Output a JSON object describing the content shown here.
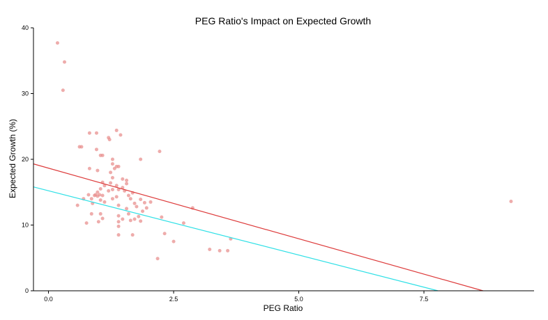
{
  "chart_data": {
    "type": "scatter",
    "title": "PEG Ratio's Impact on Expected Growth",
    "xlabel": "PEG Ratio",
    "ylabel": "Expected Growth (%)",
    "xlim": [
      -0.3,
      9.7
    ],
    "ylim": [
      0,
      40
    ],
    "xticks": [
      0,
      2.5,
      5,
      7.5
    ],
    "xtick_labels": [
      "0.0",
      "2.5",
      "5.0",
      "7.5"
    ],
    "yticks": [
      0,
      10,
      20,
      30,
      40
    ],
    "ytick_labels": [
      "0",
      "10",
      "20",
      "30",
      "40"
    ],
    "grid": false,
    "legend": "none",
    "colors": {
      "points": "#e8908f",
      "line_red": "#dd3b3b",
      "line_cyan": "#2fe0e6"
    },
    "series": [
      {
        "points": [
          [
            0.18,
            37.7
          ],
          [
            0.32,
            34.8
          ],
          [
            0.29,
            30.5
          ],
          [
            0.62,
            21.9
          ],
          [
            0.66,
            21.9
          ],
          [
            0.96,
            24.0
          ],
          [
            0.82,
            24.0
          ],
          [
            1.36,
            24.4
          ],
          [
            1.44,
            23.7
          ],
          [
            1.2,
            23.3
          ],
          [
            1.22,
            23.0
          ],
          [
            2.22,
            21.2
          ],
          [
            0.96,
            21.5
          ],
          [
            1.04,
            20.6
          ],
          [
            1.08,
            20.6
          ],
          [
            1.84,
            20.0
          ],
          [
            1.28,
            20.0
          ],
          [
            1.28,
            19.3
          ],
          [
            1.36,
            18.9
          ],
          [
            1.4,
            18.9
          ],
          [
            1.32,
            18.6
          ],
          [
            0.82,
            18.6
          ],
          [
            0.98,
            18.3
          ],
          [
            1.24,
            18.0
          ],
          [
            1.08,
            16.5
          ],
          [
            1.24,
            16.4
          ],
          [
            1.48,
            17.0
          ],
          [
            1.56,
            16.8
          ],
          [
            1.28,
            17.2
          ],
          [
            1.12,
            16.0
          ],
          [
            1.56,
            16.3
          ],
          [
            1.36,
            16.0
          ],
          [
            1.48,
            15.7
          ],
          [
            1.4,
            15.4
          ],
          [
            1.28,
            15.4
          ],
          [
            1.52,
            15.2
          ],
          [
            1.04,
            15.5
          ],
          [
            0.98,
            15.0
          ],
          [
            1.68,
            14.9
          ],
          [
            1.6,
            14.5
          ],
          [
            1.64,
            14.0
          ],
          [
            1.2,
            15.2
          ],
          [
            1.08,
            14.5
          ],
          [
            1.36,
            14.3
          ],
          [
            0.8,
            14.6
          ],
          [
            0.86,
            14.0
          ],
          [
            0.92,
            14.5
          ],
          [
            1.02,
            14.6
          ],
          [
            0.98,
            14.4
          ],
          [
            1.28,
            14.0
          ],
          [
            1.12,
            13.5
          ],
          [
            1.04,
            13.8
          ],
          [
            0.88,
            13.3
          ],
          [
            0.94,
            14.6
          ],
          [
            1.84,
            13.9
          ],
          [
            1.92,
            13.4
          ],
          [
            2.04,
            13.5
          ],
          [
            1.96,
            12.6
          ],
          [
            0.58,
            13.0
          ],
          [
            0.7,
            14.0
          ],
          [
            1.4,
            13.0
          ],
          [
            1.76,
            12.8
          ],
          [
            1.56,
            12.5
          ],
          [
            1.72,
            13.3
          ],
          [
            1.88,
            12.1
          ],
          [
            0.86,
            11.7
          ],
          [
            1.04,
            11.7
          ],
          [
            1.4,
            11.4
          ],
          [
            1.6,
            11.7
          ],
          [
            2.88,
            12.6
          ],
          [
            1.8,
            11.3
          ],
          [
            2.26,
            11.2
          ],
          [
            1.48,
            10.9
          ],
          [
            1.64,
            10.7
          ],
          [
            1.72,
            10.9
          ],
          [
            1.84,
            10.6
          ],
          [
            1.08,
            11.0
          ],
          [
            1.0,
            10.5
          ],
          [
            0.76,
            10.3
          ],
          [
            1.4,
            10.5
          ],
          [
            1.4,
            9.8
          ],
          [
            2.7,
            10.3
          ],
          [
            2.32,
            8.7
          ],
          [
            1.4,
            8.5
          ],
          [
            1.68,
            8.5
          ],
          [
            2.5,
            7.5
          ],
          [
            3.64,
            7.9
          ],
          [
            3.22,
            6.3
          ],
          [
            3.42,
            6.1
          ],
          [
            3.58,
            6.1
          ],
          [
            2.18,
            4.9
          ],
          [
            9.24,
            13.6
          ]
        ]
      }
    ],
    "lines": [
      {
        "color": "#dd3b3b",
        "x": [
          -0.3,
          8.68
        ],
        "y": [
          19.3,
          0
        ]
      },
      {
        "color": "#2fe0e6",
        "x": [
          -0.3,
          7.78
        ],
        "y": [
          15.8,
          0
        ]
      }
    ]
  }
}
